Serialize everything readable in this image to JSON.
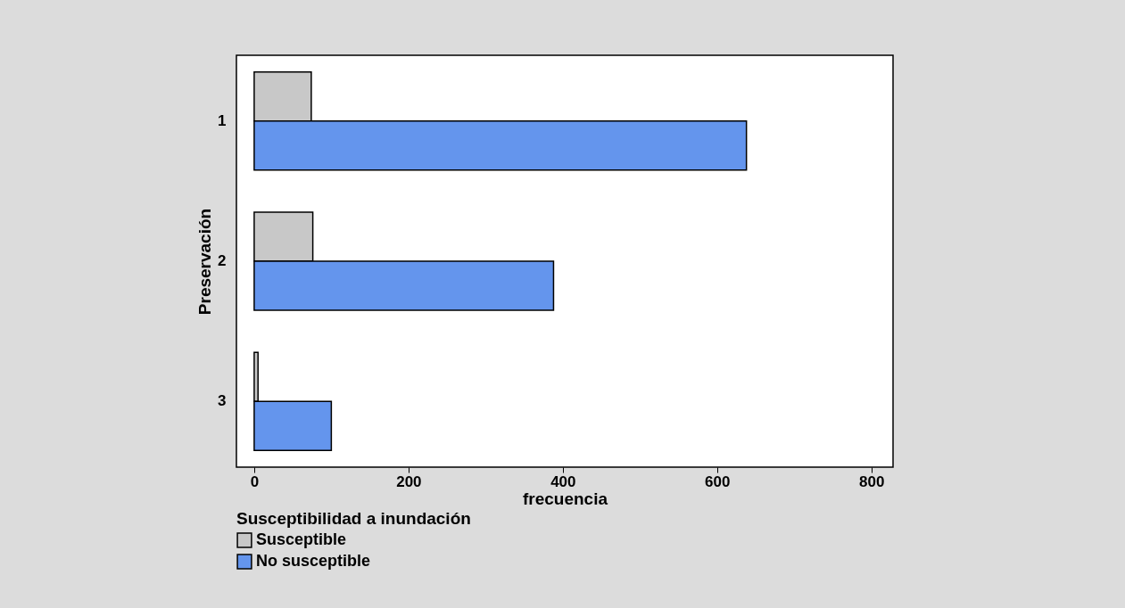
{
  "chart_data": {
    "type": "bar",
    "orientation": "horizontal",
    "xlabel": "frecuencia",
    "ylabel": "Preservación",
    "legend_title": "Susceptibilidad a inundación",
    "legend": "bottom left",
    "grid": false,
    "categories": [
      "1",
      "2",
      "3"
    ],
    "series": [
      {
        "name": "Susceptible",
        "color": "#c8c8c8",
        "values": [
          74,
          76,
          5
        ]
      },
      {
        "name": "No susceptible",
        "color": "#6495ed",
        "values": [
          638,
          388,
          100
        ]
      }
    ],
    "xlim": [
      -23,
      828
    ],
    "xticks": [
      0,
      200,
      400,
      600,
      800
    ]
  }
}
